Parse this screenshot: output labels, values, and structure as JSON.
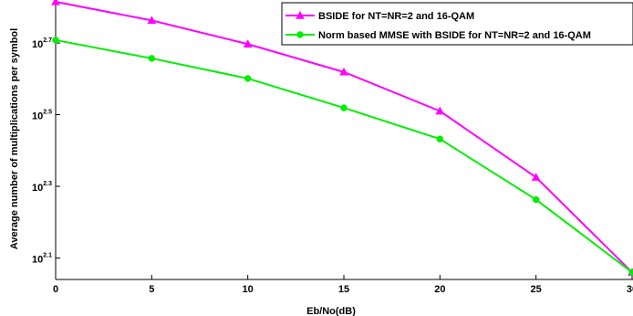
{
  "chart_data": {
    "type": "line",
    "title": "",
    "xlabel": "Eb/No(dB)",
    "ylabel": "Average number of multiplications per symbol",
    "y_scale": "log10",
    "x": [
      0,
      5,
      10,
      15,
      20,
      25,
      30
    ],
    "xlim": [
      0,
      30
    ],
    "ylim_log10": [
      2.04,
      2.82
    ],
    "x_ticks": [
      "0",
      "5",
      "10",
      "15",
      "20",
      "25",
      "30"
    ],
    "y_ticks": [
      {
        "value_log10": 2.7,
        "base": "10",
        "exp": "2.7"
      },
      {
        "value_log10": 2.5,
        "base": "10",
        "exp": "2.5"
      },
      {
        "value_log10": 2.3,
        "base": "10",
        "exp": "2.3"
      },
      {
        "value_log10": 2.1,
        "base": "10",
        "exp": "2.1"
      }
    ],
    "grid": false,
    "legend_position": "top-right",
    "series": [
      {
        "name": "BSIDE  for NT=NR=2 and 16-QAM",
        "color": "#ff00ff",
        "marker": "triangle",
        "values_log10": [
          2.815,
          2.763,
          2.697,
          2.619,
          2.51,
          2.325,
          2.06
        ]
      },
      {
        "name": "Norm based MMSE with BSIDE for NT=NR=2 and 16-QAM",
        "color": "#00ee00",
        "marker": "circle",
        "values_log10": [
          2.708,
          2.657,
          2.601,
          2.519,
          2.432,
          2.263,
          2.06
        ]
      }
    ]
  }
}
